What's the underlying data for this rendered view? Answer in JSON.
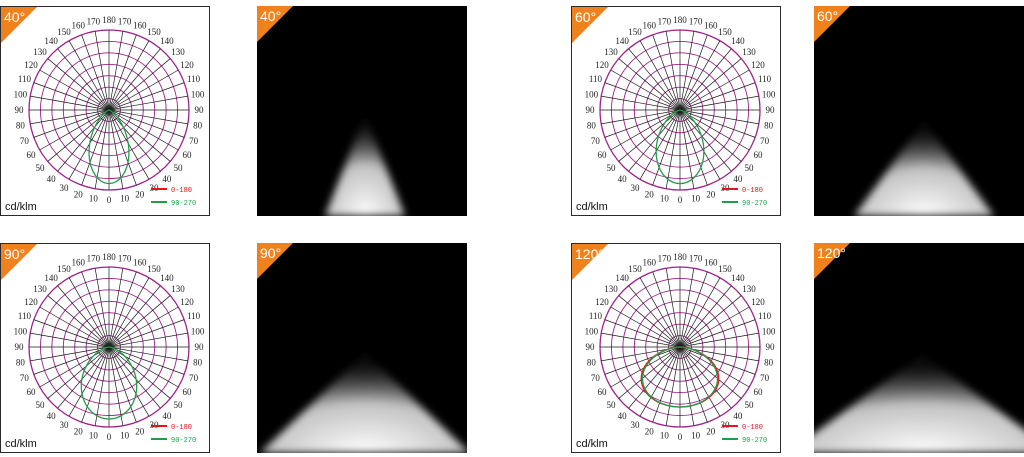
{
  "panels": [
    {
      "beam_angle_label": "40°",
      "unit_label": "cd/klm",
      "legend": [
        {
          "label": "0-180",
          "color": "#e8141b"
        },
        {
          "label": "90-270",
          "color": "#1e9f46"
        }
      ],
      "beam_angle_deg": 40,
      "curves": [
        "90-270"
      ]
    },
    {
      "beam_angle_label": "60°",
      "unit_label": "cd/klm",
      "legend": [
        {
          "label": "0-180",
          "color": "#e8141b"
        },
        {
          "label": "90-270",
          "color": "#1e9f46"
        }
      ],
      "beam_angle_deg": 60,
      "curves": [
        "90-270"
      ]
    },
    {
      "beam_angle_label": "90°",
      "unit_label": "cd/klm",
      "legend": [
        {
          "label": "0-180",
          "color": "#e8141b"
        },
        {
          "label": "90-270",
          "color": "#1e9f46"
        }
      ],
      "beam_angle_deg": 90,
      "curves": [
        "90-270"
      ]
    },
    {
      "beam_angle_label": "120°",
      "unit_label": "cd/klm",
      "legend": [
        {
          "label": "0-180",
          "color": "#e8141b"
        },
        {
          "label": "90-270",
          "color": "#1e9f46"
        }
      ],
      "beam_angle_deg": 120,
      "curves": [
        "0-180",
        "90-270"
      ]
    }
  ],
  "angle_labels_left": [
    "150",
    "140",
    "130",
    "120",
    "110",
    "100",
    "90",
    "80",
    "70",
    "60",
    "50",
    "40",
    "30",
    "20",
    "10"
  ],
  "angle_labels_right": [
    "150",
    "140",
    "130",
    "120",
    "110",
    "100",
    "90",
    "80",
    "70",
    "60",
    "50",
    "40",
    "30",
    "20",
    "10"
  ],
  "angle_labels_top": [
    "160",
    "170",
    "180",
    "170",
    "160"
  ],
  "angle_label_bottom": "0",
  "colors": {
    "badge": "#f0821e",
    "grid_circle": "#a0208a",
    "grid_line": "#1a1a1a",
    "curve_0_180": "#e8141b",
    "curve_90_270": "#1e9f46"
  }
}
